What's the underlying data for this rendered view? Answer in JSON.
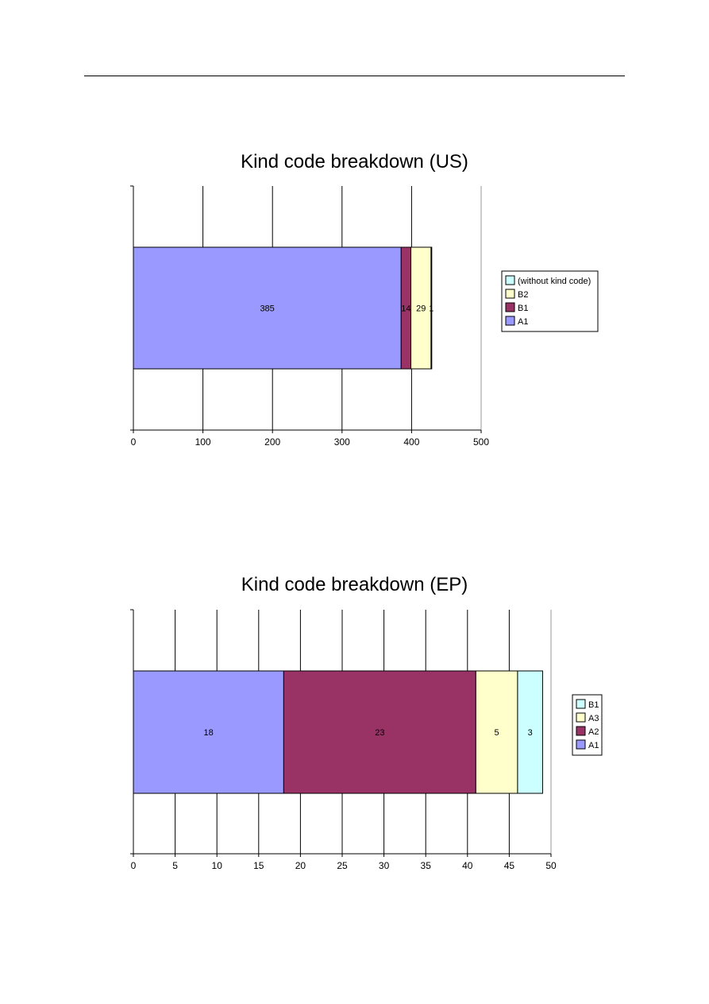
{
  "chart_data": [
    {
      "type": "bar",
      "orientation": "horizontal",
      "stacked": true,
      "title": "Kind code breakdown (US)",
      "xlim": [
        0,
        500
      ],
      "x_ticks": [
        0,
        100,
        200,
        300,
        400,
        500
      ],
      "x_tick_labels": [
        "0",
        "100",
        "200",
        "300",
        "400",
        "500"
      ],
      "grid": "vertical",
      "legend_position": "right",
      "series": [
        {
          "name": "A1",
          "value": 385,
          "label": "385",
          "color": "#9999ff"
        },
        {
          "name": "B1",
          "value": 14,
          "label": "14",
          "color": "#993366"
        },
        {
          "name": "B2",
          "value": 29,
          "label": "29",
          "color": "#ffffcc"
        },
        {
          "name": "(without kind code)",
          "value": 1,
          "label": "1",
          "color": "#ccffff"
        }
      ],
      "legend_order": [
        "(without kind code)",
        "B2",
        "B1",
        "A1"
      ]
    },
    {
      "type": "bar",
      "orientation": "horizontal",
      "stacked": true,
      "title": "Kind code breakdown (EP)",
      "xlim": [
        0,
        50
      ],
      "x_ticks": [
        0,
        5,
        10,
        15,
        20,
        25,
        30,
        35,
        40,
        45,
        50
      ],
      "x_tick_labels": [
        "0",
        "5",
        "10",
        "15",
        "20",
        "25",
        "30",
        "35",
        "40",
        "45",
        "50"
      ],
      "grid": "vertical",
      "legend_position": "right",
      "series": [
        {
          "name": "A1",
          "value": 18,
          "label": "18",
          "color": "#9999ff"
        },
        {
          "name": "A2",
          "value": 23,
          "label": "23",
          "color": "#993366"
        },
        {
          "name": "A3",
          "value": 5,
          "label": "5",
          "color": "#ffffcc"
        },
        {
          "name": "B1",
          "value": 3,
          "label": "3",
          "color": "#ccffff"
        }
      ],
      "legend_order": [
        "B1",
        "A3",
        "A2",
        "A1"
      ]
    }
  ]
}
